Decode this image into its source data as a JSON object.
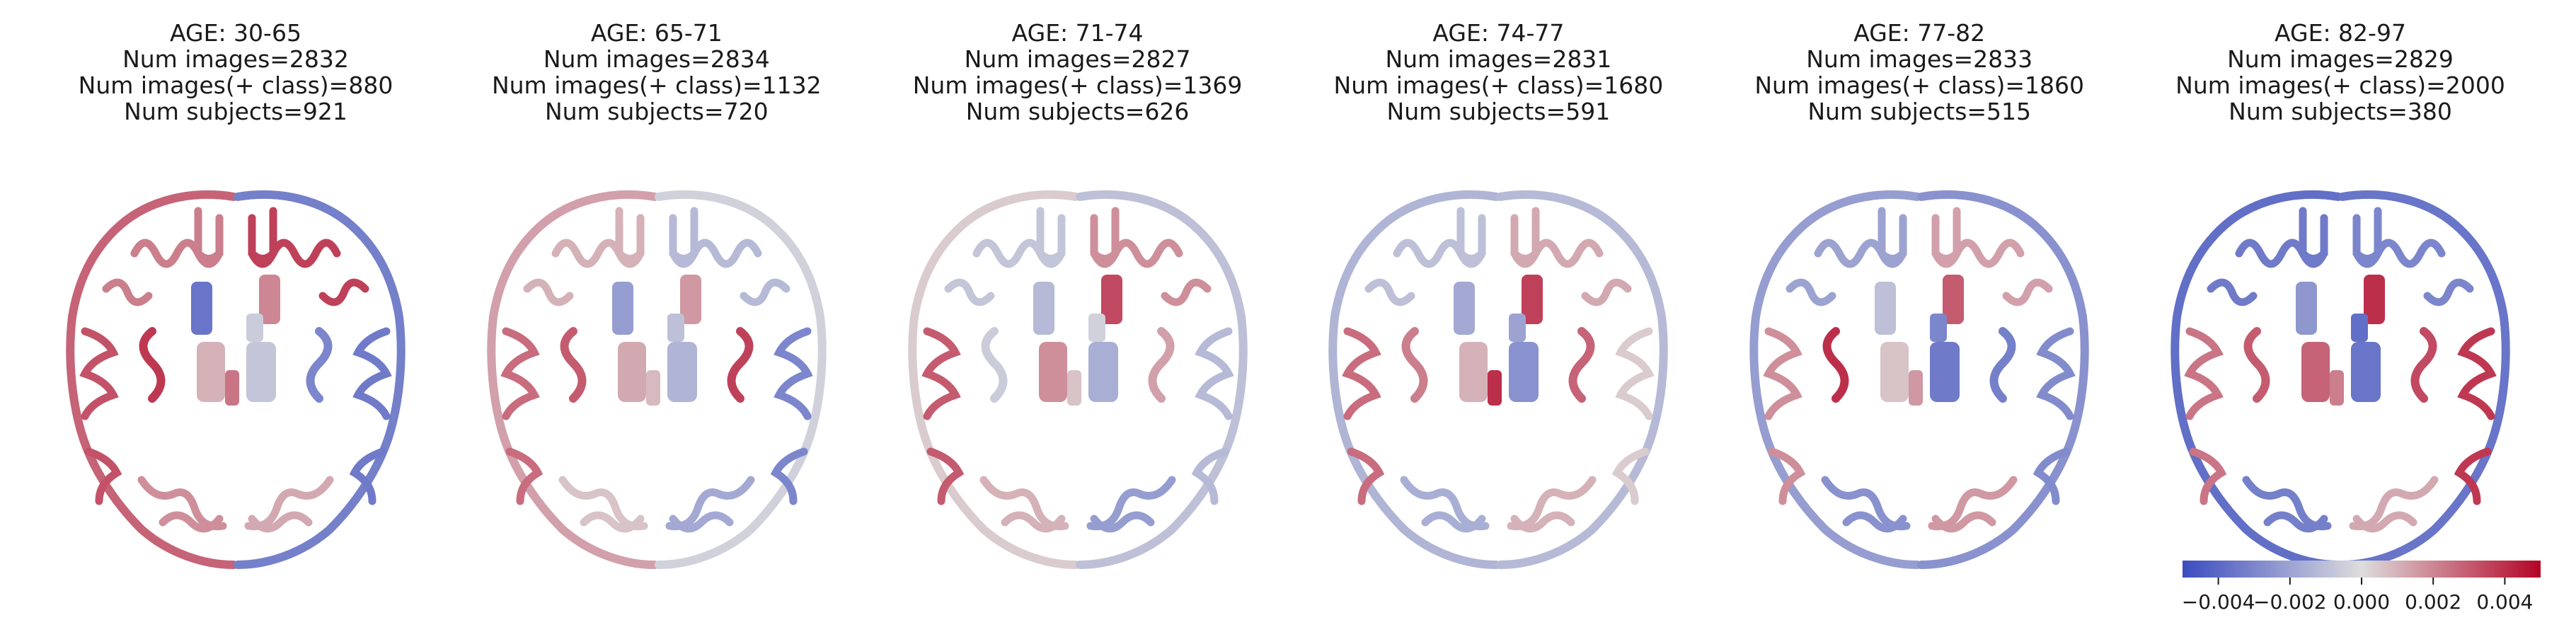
{
  "panels": [
    {
      "age": "AGE: 30-65",
      "images": "Num images=2832",
      "pos_images": "Num images(+ class)=880",
      "subjects": "Num subjects=921",
      "regions": {
        "ctx_l": 0.0028,
        "ctx_r": -0.0032,
        "front_l": 0.0022,
        "front_r": 0.0036,
        "occ_l": 0.0018,
        "occ_r": 0.0012,
        "caud_l": -0.0036,
        "caud_r": 0.002,
        "put_l": 0.001,
        "put_r": -0.0008,
        "thal_l": 0.0024,
        "thal_r": -0.0006,
        "ins_l": 0.0038,
        "ins_r": -0.003,
        "temp_l": 0.0032,
        "temp_r": -0.0034
      }
    },
    {
      "age": "AGE: 65-71",
      "images": "Num images=2834",
      "pos_images": "Num images(+ class)=1132",
      "subjects": "Num subjects=720",
      "regions": {
        "ctx_l": 0.0014,
        "ctx_r": -0.0004,
        "front_l": 0.001,
        "front_r": -0.0012,
        "occ_l": 0.0006,
        "occ_r": -0.0018,
        "caud_l": -0.0022,
        "caud_r": 0.0016,
        "put_l": 0.0012,
        "put_r": -0.0014,
        "thal_l": 0.0008,
        "thal_r": -0.001,
        "ins_l": 0.003,
        "ins_r": 0.0036,
        "temp_l": 0.0026,
        "temp_r": -0.003
      }
    },
    {
      "age": "AGE: 71-74",
      "images": "Num images=2827",
      "pos_images": "Num images(+ class)=1369",
      "subjects": "Num subjects=626",
      "regions": {
        "ctx_l": 0.0004,
        "ctx_r": -0.001,
        "front_l": -0.0008,
        "front_r": 0.0018,
        "occ_l": 0.001,
        "occ_r": -0.0022,
        "caud_l": -0.0012,
        "caud_r": 0.0034,
        "put_l": 0.0018,
        "put_r": -0.0016,
        "thal_l": 0.0006,
        "thal_r": -0.0004,
        "ins_l": -0.0006,
        "ins_r": 0.0014,
        "temp_l": 0.003,
        "temp_r": -0.0012
      }
    },
    {
      "age": "AGE: 74-77",
      "images": "Num images=2831",
      "pos_images": "Num images(+ class)=1680",
      "subjects": "Num subjects=591",
      "regions": {
        "ctx_l": -0.0014,
        "ctx_r": -0.0012,
        "front_l": -0.001,
        "front_r": 0.0012,
        "occ_l": -0.0016,
        "occ_r": 0.001,
        "caud_l": -0.0018,
        "caud_r": 0.0036,
        "put_l": 0.001,
        "put_r": -0.0026,
        "thal_l": 0.004,
        "thal_r": -0.002,
        "ins_l": 0.0022,
        "ins_r": 0.0028,
        "temp_l": 0.0026,
        "temp_r": 0.0004
      }
    },
    {
      "age": "AGE: 77-82",
      "images": "Num images=2833",
      "pos_images": "Num images(+ class)=1860",
      "subjects": "Num subjects=515",
      "regions": {
        "ctx_l": -0.0022,
        "ctx_r": -0.0026,
        "front_l": -0.002,
        "front_r": 0.0014,
        "occ_l": -0.0026,
        "occ_r": 0.0016,
        "caud_l": -0.001,
        "caud_r": 0.003,
        "put_l": 0.0006,
        "put_r": -0.0034,
        "thal_l": 0.0016,
        "thal_r": -0.003,
        "ins_l": 0.004,
        "ins_r": -0.0032,
        "temp_l": 0.0018,
        "temp_r": -0.0028
      }
    },
    {
      "age": "AGE: 82-97",
      "images": "Num images=2829",
      "pos_images": "Num images(+ class)=2000",
      "subjects": "Num subjects=380",
      "regions": {
        "ctx_l": -0.0038,
        "ctx_r": -0.0036,
        "front_l": -0.0034,
        "front_r": -0.003,
        "occ_l": -0.0032,
        "occ_r": 0.0012,
        "caud_l": -0.0024,
        "caud_r": 0.004,
        "put_l": 0.0028,
        "put_r": -0.0036,
        "thal_l": 0.0022,
        "thal_r": -0.0038,
        "ins_l": 0.003,
        "ins_r": 0.0034,
        "temp_l": 0.0024,
        "temp_r": 0.0038
      }
    }
  ],
  "colorbar": {
    "min": -0.005,
    "max": 0.005,
    "ticks": [
      {
        "value": -0.004,
        "label": "−0.004"
      },
      {
        "value": -0.002,
        "label": "−0.002"
      },
      {
        "value": 0.0,
        "label": "0.000"
      },
      {
        "value": 0.002,
        "label": "0.002"
      },
      {
        "value": 0.004,
        "label": "0.004"
      }
    ],
    "colormap": "coolwarm",
    "colors": {
      "low": "#3b4cc0",
      "mid": "#dddddd",
      "high": "#b40426"
    }
  }
}
